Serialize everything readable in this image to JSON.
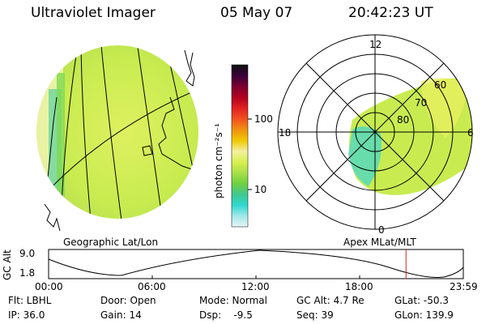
{
  "header": {
    "instrument": "Ultraviolet Imager",
    "date": "05 May 07",
    "time": "20:42:23 UT"
  },
  "colorbar": {
    "unit_label": "photon cm⁻²s⁻¹",
    "ticks": [
      "100",
      "10"
    ],
    "colors": [
      "#101010",
      "#3a003a",
      "#7a0030",
      "#b00020",
      "#e02020",
      "#f05020",
      "#f09010",
      "#f0c800",
      "#f4f0a0",
      "#d8f050",
      "#a8e048",
      "#70d040",
      "#40c890",
      "#30d8d0",
      "#a0e8e8",
      "#e8f4f4"
    ]
  },
  "geo_panel": {
    "label": "Geographic Lat/Lon"
  },
  "polar_panel": {
    "label": "Apex MLat/MLT",
    "mlt_labels": [
      "12",
      "18",
      "6",
      "0"
    ],
    "mlat_labels": [
      "60",
      "70",
      "80"
    ]
  },
  "orbit_panel": {
    "ylabel": "GC Alt",
    "yticks": [
      "9.0",
      "1.8"
    ],
    "xticks": [
      "00:00",
      "06:00",
      "12:00",
      "18:00",
      "23:59"
    ],
    "current_time_marker_fraction": 0.8618
  },
  "footer": {
    "flt": "Flt: LBHL",
    "door": "Door: Open",
    "mode": "Mode: Normal",
    "gc_alt": "GC Alt: 4.7 Re",
    "glat": "GLat: -50.3",
    "ip": "IP: 36.0",
    "gain": "Gain: 14",
    "dsp": "Dsp:    -9.5",
    "seq": "Seq: 39",
    "glon": "GLon: 139.9"
  }
}
